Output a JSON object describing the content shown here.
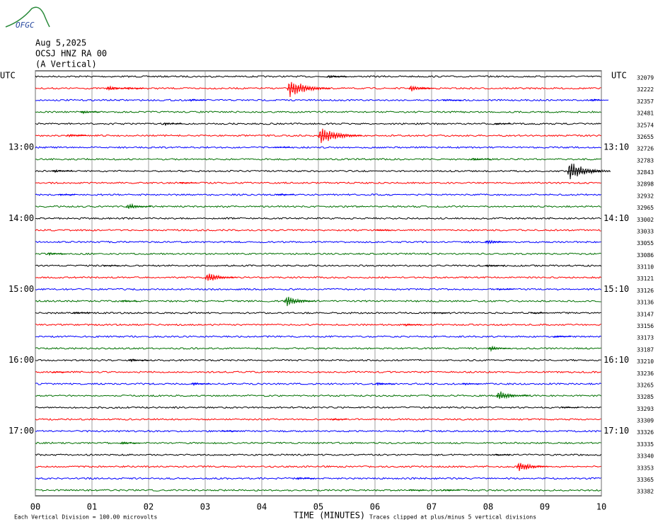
{
  "logo": "OFGC",
  "header": [
    "Aug 5,2025",
    "OCSJ HNZ RA 00",
    "(A Vertical)"
  ],
  "utc_left": "UTC",
  "utc_right": "UTC",
  "hour_labels_left": [
    "13:00",
    "14:00",
    "15:00",
    "16:00",
    "17:00"
  ],
  "hour_labels_right": [
    "13:10",
    "14:10",
    "15:10",
    "16:10",
    "17:10"
  ],
  "x_axis_label": "TIME (MINUTES)",
  "footnote_left": "Each Vertical Division =  100.00 microvolts",
  "footnote_right": "Traces clipped at plus/minus 5 vertical divisions",
  "xlim": [
    0,
    10
  ],
  "xticks": [
    {
      "value": 0,
      "label": "00"
    },
    {
      "value": 1,
      "label": "01"
    },
    {
      "value": 2,
      "label": "02"
    },
    {
      "value": 3,
      "label": "03"
    },
    {
      "value": 4,
      "label": "04"
    },
    {
      "value": 5,
      "label": "05"
    },
    {
      "value": 6,
      "label": "06"
    },
    {
      "value": 7,
      "label": "07"
    },
    {
      "value": 8,
      "label": "08"
    },
    {
      "value": 9,
      "label": "09"
    },
    {
      "value": 10,
      "label": "10"
    }
  ],
  "colors": [
    "#000000",
    "#ff0000",
    "#0000ff",
    "#007000"
  ],
  "rows": [
    {
      "label": "32079",
      "bursts": [
        [
          5.15,
          1
        ]
      ]
    },
    {
      "label": "32222",
      "bursts": [
        [
          1.25,
          1.5
        ],
        [
          1.6,
          0.8
        ],
        [
          4.45,
          5
        ],
        [
          6.6,
          2
        ]
      ]
    },
    {
      "label": "32357",
      "bursts": [
        [
          2.7,
          0.8
        ],
        [
          7.2,
          0.8
        ],
        [
          9.8,
          0.8
        ]
      ]
    },
    {
      "label": "32481",
      "bursts": [
        [
          0.8,
          1
        ]
      ]
    },
    {
      "label": "32574",
      "bursts": [
        [
          2.25,
          1
        ],
        [
          8.1,
          0.6
        ]
      ]
    },
    {
      "label": "32655",
      "bursts": [
        [
          0.55,
          1
        ],
        [
          5.0,
          5
        ]
      ]
    },
    {
      "label": "32726",
      "bursts": [
        [
          4.2,
          0.5
        ]
      ]
    },
    {
      "label": "32783",
      "bursts": [
        [
          7.7,
          1
        ]
      ]
    },
    {
      "label": "32843",
      "bursts": [
        [
          0.3,
          1
        ],
        [
          9.4,
          5
        ]
      ]
    },
    {
      "label": "32898",
      "bursts": [
        [
          2.55,
          0.6
        ]
      ]
    },
    {
      "label": "32932",
      "bursts": [
        [
          0.4,
          0.6
        ],
        [
          4.25,
          0.7
        ]
      ]
    },
    {
      "label": "32965",
      "bursts": [
        [
          1.6,
          2
        ]
      ]
    },
    {
      "label": "33002",
      "bursts": []
    },
    {
      "label": "33033",
      "bursts": [
        [
          6.0,
          0.3
        ]
      ]
    },
    {
      "label": "33055",
      "bursts": [
        [
          7.95,
          1.5
        ]
      ]
    },
    {
      "label": "33086",
      "bursts": [
        [
          0.2,
          1
        ]
      ]
    },
    {
      "label": "33110",
      "bursts": [
        [
          1.2,
          0.4
        ],
        [
          7.95,
          0.8
        ]
      ]
    },
    {
      "label": "33121",
      "bursts": [
        [
          3.0,
          3
        ]
      ]
    },
    {
      "label": "33126",
      "bursts": [
        [
          8.15,
          0.6
        ]
      ]
    },
    {
      "label": "33136",
      "bursts": [
        [
          1.5,
          0.6
        ],
        [
          4.4,
          3
        ]
      ]
    },
    {
      "label": "33147",
      "bursts": [
        [
          0.65,
          0.8
        ],
        [
          7.0,
          0.5
        ],
        [
          8.75,
          0.5
        ]
      ]
    },
    {
      "label": "33156",
      "bursts": [
        [
          6.5,
          0.8
        ]
      ]
    },
    {
      "label": "33173",
      "bursts": [
        [
          9.15,
          0.7
        ]
      ]
    },
    {
      "label": "33187",
      "bursts": [
        [
          8.0,
          1.5
        ]
      ]
    },
    {
      "label": "33210",
      "bursts": [
        [
          1.65,
          1
        ]
      ]
    },
    {
      "label": "33236",
      "bursts": [
        [
          0.3,
          0.5
        ]
      ]
    },
    {
      "label": "33265",
      "bursts": [
        [
          2.75,
          1
        ],
        [
          6.0,
          1
        ],
        [
          7.55,
          0.8
        ]
      ]
    },
    {
      "label": "33285",
      "bursts": [
        [
          8.15,
          3
        ]
      ]
    },
    {
      "label": "33293",
      "bursts": [
        [
          9.3,
          0.6
        ]
      ]
    },
    {
      "label": "33309",
      "bursts": [
        [
          5.2,
          0.5
        ]
      ]
    },
    {
      "label": "33326",
      "bursts": [
        [
          3.3,
          0.4
        ]
      ]
    },
    {
      "label": "33335",
      "bursts": [
        [
          1.5,
          1
        ]
      ]
    },
    {
      "label": "33340",
      "bursts": [
        [
          8.1,
          0.4
        ]
      ]
    },
    {
      "label": "33353",
      "bursts": [
        [
          8.5,
          3
        ]
      ]
    },
    {
      "label": "33365",
      "bursts": [
        [
          4.6,
          0.8
        ]
      ]
    },
    {
      "label": "33382",
      "bursts": [
        [
          6.6,
          0.6
        ],
        [
          7.2,
          0.6
        ]
      ]
    }
  ]
}
